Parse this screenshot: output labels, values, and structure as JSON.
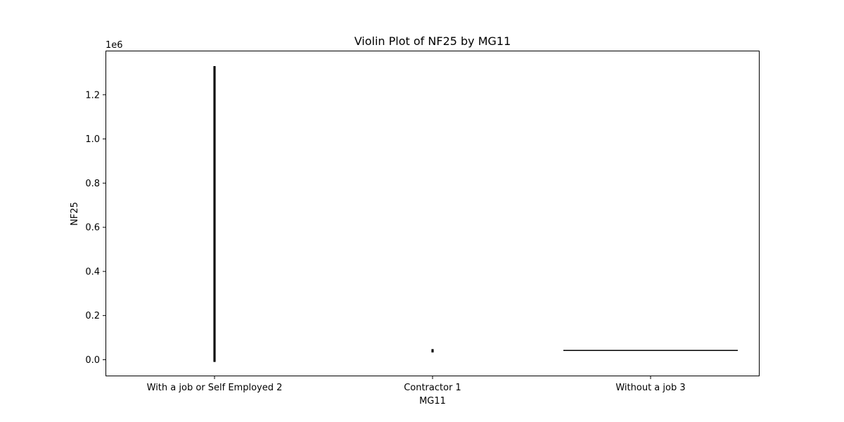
{
  "chart_data": {
    "type": "violin",
    "title": "Violin Plot of NF25 by MG11",
    "xlabel": "MG11",
    "ylabel": "NF25",
    "y_scale_label": "1e6",
    "y_multiplier": 1000000,
    "ylim": [
      -75000,
      1400000
    ],
    "yticks": [
      0,
      200000,
      400000,
      600000,
      800000,
      1000000,
      1200000
    ],
    "ytick_labels": [
      "0.0",
      "0.2",
      "0.4",
      "0.6",
      "0.8",
      "1.0",
      "1.2"
    ],
    "grid": false,
    "categories": [
      "With a job or Self Employed 2",
      "Contractor 1",
      "Without a job 3"
    ],
    "violins": [
      {
        "category": "With a job or Self Employed 2",
        "min": -10000,
        "max": 1330000,
        "relative_width": 0.01
      },
      {
        "category": "Contractor 1",
        "min": 33000,
        "max": 48000,
        "relative_width": 0.01
      },
      {
        "category": "Without a job 3",
        "min": 42000,
        "max": 42000,
        "relative_width": 0.8
      }
    ],
    "colors": {
      "violin": "#000000",
      "axes": "#000000",
      "background": "#ffffff"
    }
  }
}
